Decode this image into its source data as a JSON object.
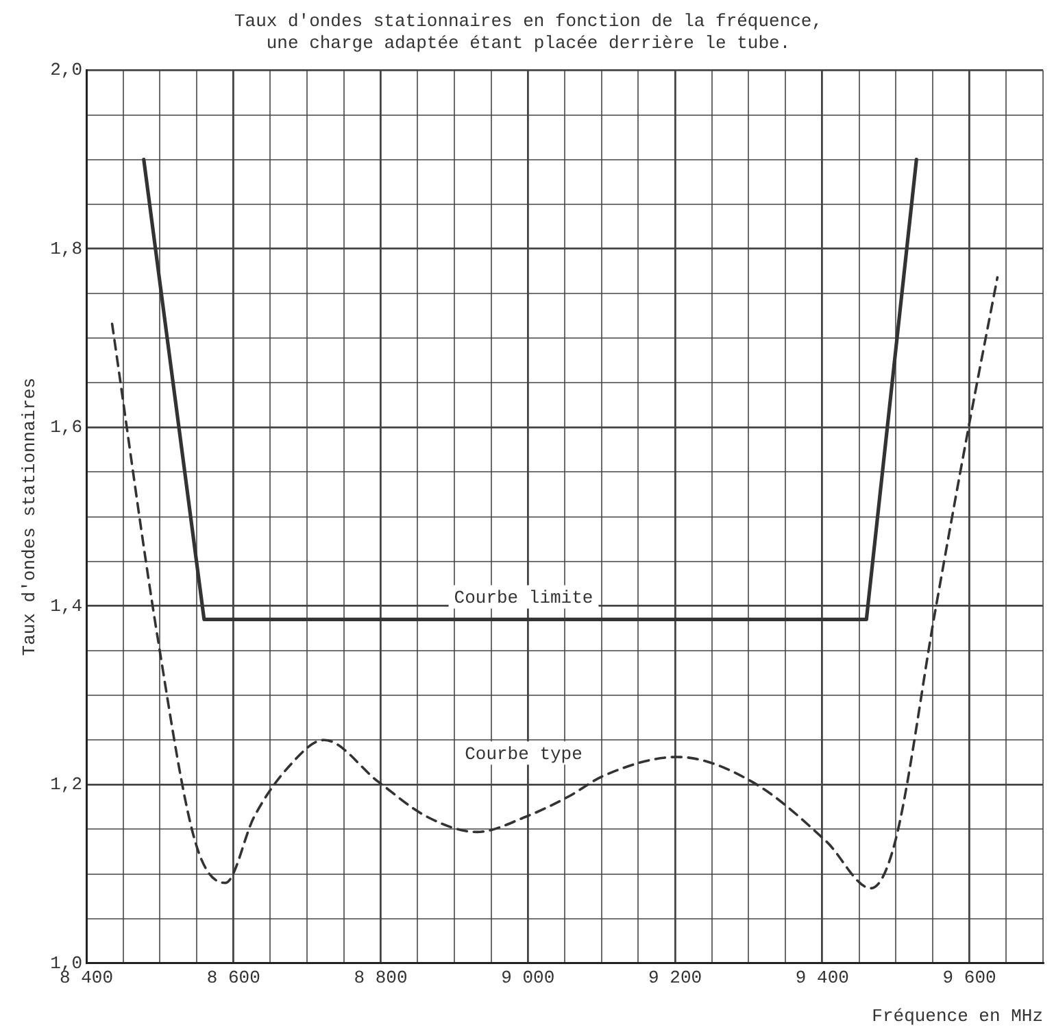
{
  "chart_data": {
    "type": "line",
    "title": [
      "Taux d'ondes stationnaires en fonction de la fréquence,",
      "une charge adaptée étant placée derrière le tube."
    ],
    "xlabel": "Fréquence en MHz",
    "ylabel": "Taux d'ondes stationnaires",
    "xlim": [
      8400,
      9700
    ],
    "ylim": [
      1.0,
      2.0
    ],
    "xticks": [
      {
        "value": 8400,
        "label": "8 400"
      },
      {
        "value": 8450,
        "label": null
      },
      {
        "value": 8500,
        "label": null
      },
      {
        "value": 8550,
        "label": null
      },
      {
        "value": 8600,
        "label": "8 600"
      },
      {
        "value": 8650,
        "label": null
      },
      {
        "value": 8700,
        "label": null
      },
      {
        "value": 8750,
        "label": null
      },
      {
        "value": 8800,
        "label": "8 800"
      },
      {
        "value": 8850,
        "label": null
      },
      {
        "value": 8900,
        "label": null
      },
      {
        "value": 8950,
        "label": null
      },
      {
        "value": 9000,
        "label": "9 000"
      },
      {
        "value": 9050,
        "label": null
      },
      {
        "value": 9100,
        "label": null
      },
      {
        "value": 9150,
        "label": null
      },
      {
        "value": 9200,
        "label": "9 200"
      },
      {
        "value": 9250,
        "label": null
      },
      {
        "value": 9300,
        "label": null
      },
      {
        "value": 9350,
        "label": null
      },
      {
        "value": 9400,
        "label": "9 400"
      },
      {
        "value": 9450,
        "label": null
      },
      {
        "value": 9500,
        "label": null
      },
      {
        "value": 9550,
        "label": null
      },
      {
        "value": 9600,
        "label": "9 600"
      },
      {
        "value": 9650,
        "label": null
      },
      {
        "value": 9700,
        "label": null
      }
    ],
    "yticks": [
      {
        "value": 1.0,
        "label": "1,0"
      },
      {
        "value": 1.05,
        "label": null
      },
      {
        "value": 1.1,
        "label": null
      },
      {
        "value": 1.15,
        "label": null
      },
      {
        "value": 1.2,
        "label": "1,2"
      },
      {
        "value": 1.25,
        "label": null
      },
      {
        "value": 1.3,
        "label": null
      },
      {
        "value": 1.35,
        "label": null
      },
      {
        "value": 1.4,
        "label": "1,4"
      },
      {
        "value": 1.45,
        "label": null
      },
      {
        "value": 1.5,
        "label": null
      },
      {
        "value": 1.55,
        "label": null
      },
      {
        "value": 1.6,
        "label": "1,6"
      },
      {
        "value": 1.65,
        "label": null
      },
      {
        "value": 1.7,
        "label": null
      },
      {
        "value": 1.75,
        "label": null
      },
      {
        "value": 1.8,
        "label": "1,8"
      },
      {
        "value": 1.85,
        "label": null
      },
      {
        "value": 1.9,
        "label": null
      },
      {
        "value": 1.95,
        "label": null
      },
      {
        "value": 2.0,
        "label": "2,0"
      }
    ],
    "grid": true,
    "legend": false,
    "marker": "none",
    "series": [
      {
        "name": "Courbe limite",
        "color": "#333333",
        "line_style": "solid",
        "x": [
          8478,
          8560,
          9460,
          9528
        ],
        "values": [
          1.9,
          1.385,
          1.385,
          1.9
        ]
      },
      {
        "name": "Courbe type",
        "color": "#333333",
        "line_style": "dashed",
        "x": [
          8435,
          8497,
          8548,
          8589,
          8628,
          8676,
          8723,
          8797,
          8863,
          8931,
          8997,
          9056,
          9103,
          9203,
          9305,
          9406,
          9466,
          9499,
          9553,
          9597,
          9638
        ],
        "values": [
          1.716,
          1.364,
          1.136,
          1.09,
          1.164,
          1.221,
          1.25,
          1.203,
          1.164,
          1.147,
          1.164,
          1.187,
          1.21,
          1.231,
          1.203,
          1.136,
          1.084,
          1.136,
          1.392,
          1.592,
          1.768
        ]
      }
    ]
  }
}
